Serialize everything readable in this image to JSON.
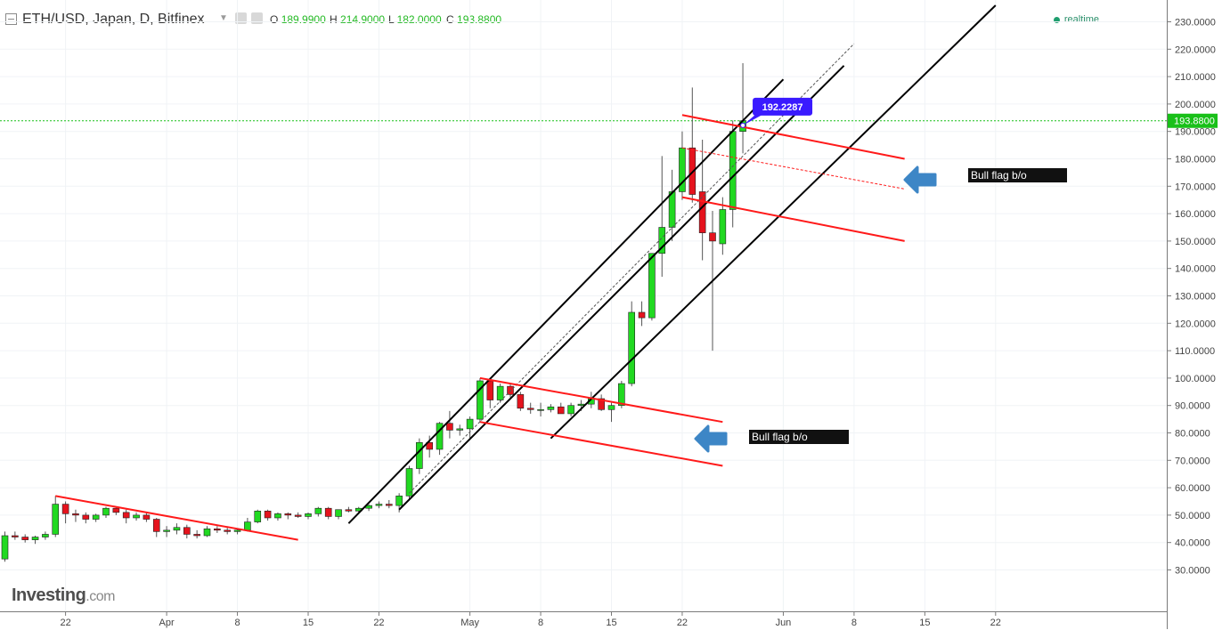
{
  "header": {
    "title": "ETH/USD, Japan, D, Bitfinex",
    "ohlc": [
      {
        "k": "O",
        "v": "189.9900"
      },
      {
        "k": "H",
        "v": "214.9000"
      },
      {
        "k": "L",
        "v": "182.0000"
      },
      {
        "k": "C",
        "v": "193.8800"
      }
    ],
    "realtime_label": "realtime"
  },
  "logo": {
    "main": "Investing",
    "suffix": ".com"
  },
  "colors": {
    "up": "#21d921",
    "down": "#e5131d",
    "channel": "#000000",
    "flag": "#ff1a1a",
    "arrow": "#3d86c6",
    "price_line": "#19c019",
    "price_label_bg": "#3a1aff"
  },
  "chart_data": {
    "type": "candlestick",
    "symbol": "ETH/USD",
    "interval": "D",
    "exchange": "Bitfinex",
    "y_axis": {
      "min": 20,
      "max": 235,
      "ticks": [
        30,
        40,
        50,
        60,
        70,
        80,
        90,
        100,
        110,
        120,
        130,
        140,
        150,
        160,
        170,
        180,
        190,
        200,
        210,
        220,
        230
      ],
      "tick_format": "0.0000"
    },
    "x_ticks": [
      {
        "label": "22",
        "date": "2017-03-22"
      },
      {
        "label": "Apr",
        "date": "2017-04-01"
      },
      {
        "label": "8",
        "date": "2017-04-08"
      },
      {
        "label": "15",
        "date": "2017-04-15"
      },
      {
        "label": "22",
        "date": "2017-04-22"
      },
      {
        "label": "May",
        "date": "2017-05-01"
      },
      {
        "label": "8",
        "date": "2017-05-08"
      },
      {
        "label": "15",
        "date": "2017-05-15"
      },
      {
        "label": "22",
        "date": "2017-05-22"
      },
      {
        "label": "Jun",
        "date": "2017-06-01"
      },
      {
        "label": "8",
        "date": "2017-06-08"
      },
      {
        "label": "15",
        "date": "2017-06-15"
      },
      {
        "label": "22",
        "date": "2017-06-22"
      }
    ],
    "x_range": [
      "2017-03-16",
      "2017-06-30"
    ],
    "candles": [
      {
        "date": "2017-03-16",
        "o": 34,
        "h": 44,
        "l": 33,
        "c": 42.5
      },
      {
        "date": "2017-03-17",
        "o": 42.5,
        "h": 44,
        "l": 41,
        "c": 42
      },
      {
        "date": "2017-03-18",
        "o": 42,
        "h": 43,
        "l": 40,
        "c": 41
      },
      {
        "date": "2017-03-19",
        "o": 41,
        "h": 42.5,
        "l": 39.5,
        "c": 42
      },
      {
        "date": "2017-03-20",
        "o": 42,
        "h": 44,
        "l": 41,
        "c": 43
      },
      {
        "date": "2017-03-21",
        "o": 43,
        "h": 57,
        "l": 42,
        "c": 54
      },
      {
        "date": "2017-03-22",
        "o": 54,
        "h": 55,
        "l": 47,
        "c": 50.5
      },
      {
        "date": "2017-03-23",
        "o": 50.5,
        "h": 52,
        "l": 47.5,
        "c": 50
      },
      {
        "date": "2017-03-24",
        "o": 50,
        "h": 51,
        "l": 47,
        "c": 48.5
      },
      {
        "date": "2017-03-25",
        "o": 48.5,
        "h": 50.5,
        "l": 47.5,
        "c": 50
      },
      {
        "date": "2017-03-26",
        "o": 50,
        "h": 53,
        "l": 49,
        "c": 52.5
      },
      {
        "date": "2017-03-27",
        "o": 52.5,
        "h": 53,
        "l": 50,
        "c": 51
      },
      {
        "date": "2017-03-28",
        "o": 51,
        "h": 52,
        "l": 47,
        "c": 49
      },
      {
        "date": "2017-03-29",
        "o": 49,
        "h": 51,
        "l": 48,
        "c": 50
      },
      {
        "date": "2017-03-30",
        "o": 50,
        "h": 51,
        "l": 47.5,
        "c": 48.5
      },
      {
        "date": "2017-03-31",
        "o": 48.5,
        "h": 49,
        "l": 42,
        "c": 44
      },
      {
        "date": "2017-04-01",
        "o": 44,
        "h": 46,
        "l": 42,
        "c": 44.5
      },
      {
        "date": "2017-04-02",
        "o": 44.5,
        "h": 47,
        "l": 43,
        "c": 45.5
      },
      {
        "date": "2017-04-03",
        "o": 45.5,
        "h": 46.5,
        "l": 41.5,
        "c": 43
      },
      {
        "date": "2017-04-04",
        "o": 43,
        "h": 44.5,
        "l": 41.5,
        "c": 42.5
      },
      {
        "date": "2017-04-05",
        "o": 42.5,
        "h": 46,
        "l": 42,
        "c": 45
      },
      {
        "date": "2017-04-06",
        "o": 45,
        "h": 46,
        "l": 43.5,
        "c": 44.5
      },
      {
        "date": "2017-04-07",
        "o": 44.5,
        "h": 45.5,
        "l": 43,
        "c": 44
      },
      {
        "date": "2017-04-08",
        "o": 44,
        "h": 45,
        "l": 43,
        "c": 44.5
      },
      {
        "date": "2017-04-09",
        "o": 44.5,
        "h": 49,
        "l": 44,
        "c": 47.5
      },
      {
        "date": "2017-04-10",
        "o": 47.5,
        "h": 52,
        "l": 47,
        "c": 51.5
      },
      {
        "date": "2017-04-11",
        "o": 51.5,
        "h": 52,
        "l": 48,
        "c": 49
      },
      {
        "date": "2017-04-12",
        "o": 49,
        "h": 51,
        "l": 48,
        "c": 50.5
      },
      {
        "date": "2017-04-13",
        "o": 50.5,
        "h": 51,
        "l": 48.5,
        "c": 50
      },
      {
        "date": "2017-04-14",
        "o": 50,
        "h": 51,
        "l": 49,
        "c": 49.5
      },
      {
        "date": "2017-04-15",
        "o": 49.5,
        "h": 51,
        "l": 48.5,
        "c": 50.5
      },
      {
        "date": "2017-04-16",
        "o": 50.5,
        "h": 53,
        "l": 49.5,
        "c": 52.5
      },
      {
        "date": "2017-04-17",
        "o": 52.5,
        "h": 53,
        "l": 48.5,
        "c": 49.5
      },
      {
        "date": "2017-04-18",
        "o": 49.5,
        "h": 52,
        "l": 48.5,
        "c": 52
      },
      {
        "date": "2017-04-19",
        "o": 52,
        "h": 53,
        "l": 51,
        "c": 51.5
      },
      {
        "date": "2017-04-20",
        "o": 51.5,
        "h": 53,
        "l": 50.5,
        "c": 52.5
      },
      {
        "date": "2017-04-21",
        "o": 52.5,
        "h": 54,
        "l": 51.5,
        "c": 53.5
      },
      {
        "date": "2017-04-22",
        "o": 53.5,
        "h": 55,
        "l": 52.5,
        "c": 54
      },
      {
        "date": "2017-04-23",
        "o": 54,
        "h": 55.5,
        "l": 52.5,
        "c": 53.5
      },
      {
        "date": "2017-04-24",
        "o": 53.5,
        "h": 58,
        "l": 51,
        "c": 57
      },
      {
        "date": "2017-04-25",
        "o": 57,
        "h": 68,
        "l": 56,
        "c": 67
      },
      {
        "date": "2017-04-26",
        "o": 67,
        "h": 78,
        "l": 65,
        "c": 76.5
      },
      {
        "date": "2017-04-27",
        "o": 76.5,
        "h": 79,
        "l": 71,
        "c": 74
      },
      {
        "date": "2017-04-28",
        "o": 74,
        "h": 84,
        "l": 72,
        "c": 83.5
      },
      {
        "date": "2017-04-29",
        "o": 83.5,
        "h": 88,
        "l": 78,
        "c": 81
      },
      {
        "date": "2017-04-30",
        "o": 81,
        "h": 83,
        "l": 79,
        "c": 81.5
      },
      {
        "date": "2017-05-01",
        "o": 81.5,
        "h": 86,
        "l": 78,
        "c": 85
      },
      {
        "date": "2017-05-02",
        "o": 85,
        "h": 100,
        "l": 84,
        "c": 99
      },
      {
        "date": "2017-05-03",
        "o": 99,
        "h": 100,
        "l": 89,
        "c": 92
      },
      {
        "date": "2017-05-04",
        "o": 92,
        "h": 98,
        "l": 91,
        "c": 97
      },
      {
        "date": "2017-05-05",
        "o": 97,
        "h": 98,
        "l": 93,
        "c": 94
      },
      {
        "date": "2017-05-06",
        "o": 94,
        "h": 95,
        "l": 88,
        "c": 89
      },
      {
        "date": "2017-05-07",
        "o": 89,
        "h": 91,
        "l": 87,
        "c": 88.5
      },
      {
        "date": "2017-05-08",
        "o": 88.5,
        "h": 91,
        "l": 86,
        "c": 88.5
      },
      {
        "date": "2017-05-09",
        "o": 88.5,
        "h": 90.5,
        "l": 87.5,
        "c": 89.5
      },
      {
        "date": "2017-05-10",
        "o": 89.5,
        "h": 91,
        "l": 87,
        "c": 87
      },
      {
        "date": "2017-05-11",
        "o": 87,
        "h": 91,
        "l": 86,
        "c": 90
      },
      {
        "date": "2017-05-12",
        "o": 90,
        "h": 92,
        "l": 88,
        "c": 90.5
      },
      {
        "date": "2017-05-13",
        "o": 90.5,
        "h": 95,
        "l": 89,
        "c": 92.5
      },
      {
        "date": "2017-05-14",
        "o": 92.5,
        "h": 94,
        "l": 88,
        "c": 88.5
      },
      {
        "date": "2017-05-15",
        "o": 88.5,
        "h": 91,
        "l": 84,
        "c": 90
      },
      {
        "date": "2017-05-16",
        "o": 90,
        "h": 99,
        "l": 89,
        "c": 98
      },
      {
        "date": "2017-05-17",
        "o": 98,
        "h": 128,
        "l": 97,
        "c": 124
      },
      {
        "date": "2017-05-18",
        "o": 124,
        "h": 128,
        "l": 119,
        "c": 122
      },
      {
        "date": "2017-05-19",
        "o": 122,
        "h": 145,
        "l": 121,
        "c": 145.5
      },
      {
        "date": "2017-05-20",
        "o": 145.5,
        "h": 181,
        "l": 137,
        "c": 155
      },
      {
        "date": "2017-05-21",
        "o": 155,
        "h": 176,
        "l": 150,
        "c": 168
      },
      {
        "date": "2017-05-22",
        "o": 168,
        "h": 190,
        "l": 165,
        "c": 184
      },
      {
        "date": "2017-05-23",
        "o": 184,
        "h": 206,
        "l": 164,
        "c": 167
      },
      {
        "date": "2017-05-24",
        "o": 168,
        "h": 187,
        "l": 143,
        "c": 153
      },
      {
        "date": "2017-05-25",
        "o": 153,
        "h": 161,
        "l": 110,
        "c": 150
      },
      {
        "date": "2017-05-26",
        "o": 149,
        "h": 166,
        "l": 145,
        "c": 161.5
      },
      {
        "date": "2017-05-27",
        "o": 161.5,
        "h": 194,
        "l": 155,
        "c": 190
      },
      {
        "date": "2017-05-28",
        "o": 190,
        "h": 214.9,
        "l": 182,
        "c": 193.88
      }
    ],
    "current_price": 193.88,
    "last_price_label": "193.8800",
    "callout": {
      "date": "2017-05-28",
      "price": 192.2287,
      "label": "192.2287"
    },
    "annotations": [
      {
        "text": "Bull flag b/o"
      },
      {
        "text": "Bull flag b/o"
      }
    ],
    "trendlines": [
      {
        "kind": "flag",
        "color": "#ff1a1a",
        "width": 2,
        "from": [
          "2017-03-21",
          57
        ],
        "to": [
          "2017-04-14",
          41
        ]
      },
      {
        "kind": "channel",
        "color": "#000000",
        "width": 2,
        "from": [
          "2017-04-19",
          47
        ],
        "to": [
          "2017-06-01",
          209
        ]
      },
      {
        "kind": "channel",
        "color": "#000000",
        "width": 2,
        "from": [
          "2017-04-24",
          52
        ],
        "to": [
          "2017-06-07",
          214
        ]
      },
      {
        "kind": "channel",
        "color": "#000000",
        "width": 2,
        "from": [
          "2017-05-09",
          78
        ],
        "to": [
          "2017-06-22",
          236
        ]
      },
      {
        "kind": "midline",
        "color": "#555555",
        "width": 1,
        "dash": "3,2",
        "from": [
          "2017-04-25",
          58
        ],
        "to": [
          "2017-06-08",
          222
        ]
      },
      {
        "kind": "flag",
        "color": "#ff1a1a",
        "width": 2,
        "from": [
          "2017-05-02",
          100
        ],
        "to": [
          "2017-05-26",
          84
        ]
      },
      {
        "kind": "flag",
        "color": "#ff1a1a",
        "width": 2,
        "from": [
          "2017-05-02",
          84
        ],
        "to": [
          "2017-05-26",
          68
        ]
      },
      {
        "kind": "flag",
        "color": "#ff1a1a",
        "width": 2,
        "from": [
          "2017-05-22",
          196
        ],
        "to": [
          "2017-06-13",
          180
        ]
      },
      {
        "kind": "flag",
        "color": "#ff1a1a",
        "width": 2,
        "from": [
          "2017-05-22",
          166
        ],
        "to": [
          "2017-06-13",
          150
        ]
      },
      {
        "kind": "flag-mid",
        "color": "#ff1a1a",
        "width": 1,
        "dash": "3,2",
        "from": [
          "2017-05-22",
          184
        ],
        "to": [
          "2017-06-13",
          169
        ]
      }
    ]
  }
}
